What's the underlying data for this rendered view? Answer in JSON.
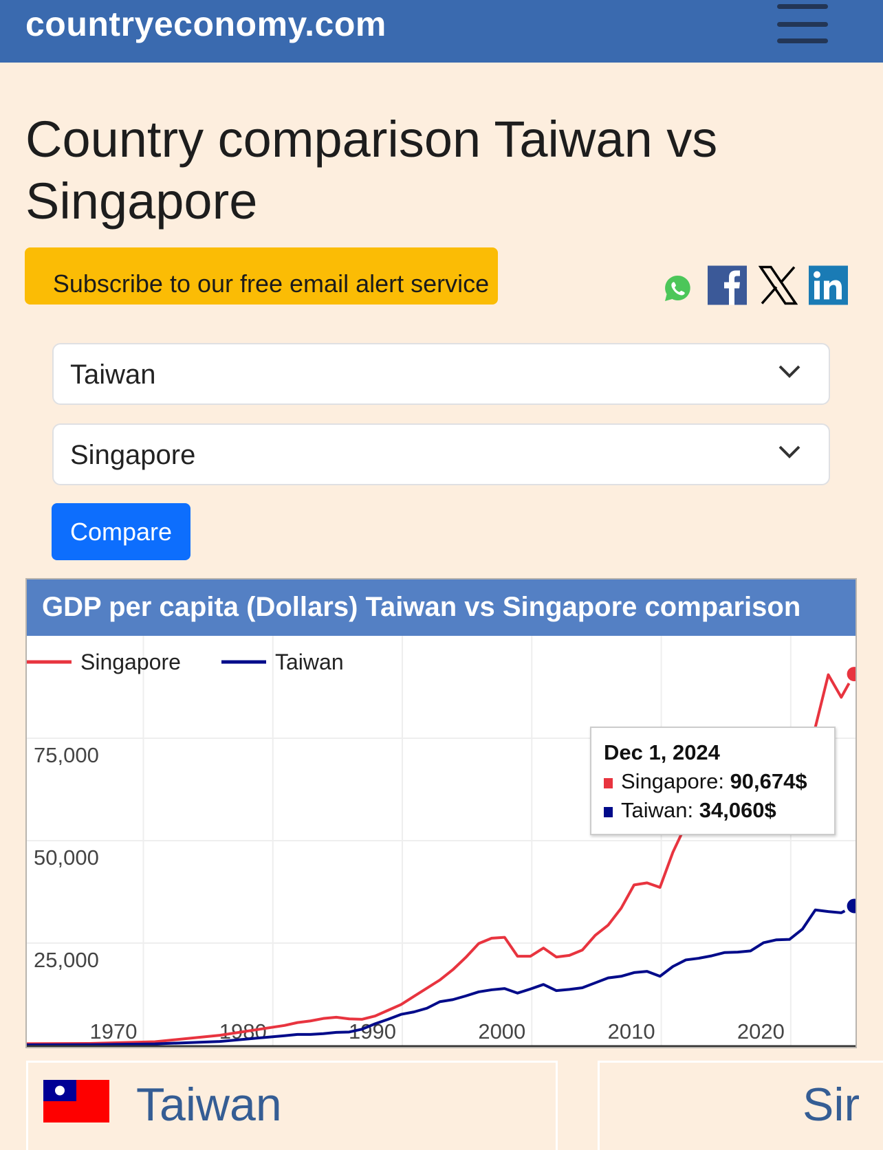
{
  "header": {
    "brand": "countryeconomy.com",
    "menu_icon": "hamburger-icon"
  },
  "page_title": "Country comparison Taiwan vs Singapore",
  "subscribe_label": "Subscribe to our free email alert service",
  "share_icons": [
    "whatsapp-icon",
    "facebook-icon",
    "x-icon",
    "linkedin-icon"
  ],
  "form": {
    "country1": "Taiwan",
    "country2": "Singapore",
    "compare_label": "Compare"
  },
  "colors": {
    "singapore": "#e8343f",
    "taiwan": "#000b8a",
    "header": "#3a6aaf",
    "chart_header": "#5480c4"
  },
  "chart_data": {
    "type": "line",
    "title": "GDP per capita (Dollars) Taiwan vs Singapore comparison",
    "legend_position": "top-left",
    "grid": true,
    "xlim": [
      1961,
      2025
    ],
    "ylim": [
      0,
      100000
    ],
    "x_ticks": [
      "1970",
      "1980",
      "1990",
      "2000",
      "2010",
      "2020"
    ],
    "y_ticks": [
      "25,000",
      "50,000",
      "75,000"
    ],
    "x": [
      1960,
      1965,
      1970,
      1975,
      1980,
      1981,
      1982,
      1983,
      1984,
      1985,
      1986,
      1987,
      1988,
      1989,
      1990,
      1991,
      1992,
      1993,
      1994,
      1995,
      1996,
      1997,
      1998,
      1999,
      2000,
      2001,
      2002,
      2003,
      2004,
      2005,
      2006,
      2007,
      2008,
      2009,
      2010,
      2011,
      2012,
      2013,
      2014,
      2015,
      2016,
      2017,
      2018,
      2019,
      2020,
      2021,
      2022,
      2023,
      2024
    ],
    "series": [
      {
        "name": "Singapore",
        "values": [
          430,
          500,
          925,
          2500,
          4900,
          5600,
          6000,
          6600,
          6900,
          6500,
          6400,
          7200,
          8600,
          10000,
          12000,
          14000,
          16000,
          18500,
          21500,
          24900,
          26200,
          26400,
          21800,
          21800,
          23800,
          21600,
          22000,
          23300,
          26900,
          29400,
          33500,
          39200,
          39700,
          38600,
          47200,
          53900,
          55500,
          56900,
          57600,
          55600,
          56800,
          61200,
          66800,
          66100,
          61300,
          77700,
          90500,
          85000,
          90674
        ]
      },
      {
        "name": "Taiwan",
        "values": [
          160,
          220,
          400,
          980,
          2400,
          2700,
          2700,
          2900,
          3200,
          3300,
          4000,
          5300,
          6400,
          7600,
          8200,
          9100,
          10700,
          11200,
          12100,
          13100,
          13600,
          13900,
          12800,
          13800,
          14900,
          13400,
          13700,
          14100,
          15300,
          16500,
          16900,
          17800,
          18100,
          16900,
          19300,
          20900,
          21300,
          21900,
          22700,
          22800,
          23100,
          25100,
          25800,
          25900,
          28400,
          33100,
          32700,
          32400,
          34060
        ]
      }
    ],
    "tooltip": {
      "date": "Dec 1, 2024",
      "rows": [
        {
          "label": "Singapore: ",
          "value": "90,674$"
        },
        {
          "label": "Taiwan: ",
          "value": "34,060$"
        }
      ]
    }
  },
  "cards": [
    {
      "name": "Taiwan",
      "flag": "taiwan-flag"
    },
    {
      "name": "Sir"
    }
  ]
}
